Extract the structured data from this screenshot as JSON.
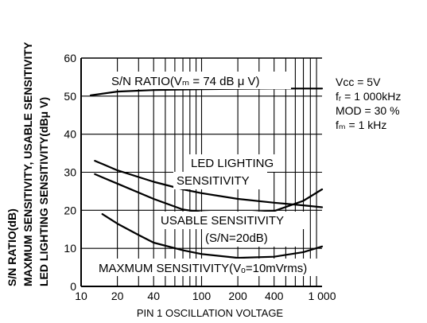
{
  "chart_data": {
    "type": "line",
    "title": "",
    "xlabel": "PIN 1 OSCILLATION VOLTAGE",
    "ylabel_lines": [
      "S/N RATIO(dB)",
      "MAXMUM SENSITIVITY, USABLE SENSITIVITY",
      "LED LIGHTING SENSITIVITY(dBμ V)"
    ],
    "x_scale": "log",
    "xlim": [
      10,
      1000
    ],
    "ylim": [
      0,
      60
    ],
    "x_ticks": [
      10,
      20,
      40,
      100,
      200,
      400,
      1000
    ],
    "x_tick_labels": [
      "10",
      "20",
      "40",
      "100",
      "200",
      "400",
      "1 000"
    ],
    "y_ticks": [
      0,
      10,
      20,
      30,
      40,
      50,
      60
    ],
    "y_tick_labels": [
      "0",
      "10",
      "20",
      "30",
      "40",
      "50",
      "60"
    ],
    "grid": true,
    "series": [
      {
        "name": "S/N RATIO(Vₘ = 74 dB μ V)",
        "x": [
          12,
          20,
          40,
          100,
          200,
          400,
          1000
        ],
        "y": [
          50.2,
          51.2,
          51.6,
          51.8,
          51.9,
          52,
          52
        ]
      },
      {
        "name": "LED LIGHTING SENSITIVITY",
        "x": [
          13,
          20,
          40,
          70,
          100,
          200,
          400,
          700,
          1000
        ],
        "y": [
          33,
          30.5,
          27.5,
          25.5,
          24.5,
          23,
          22,
          21.3,
          20.8
        ]
      },
      {
        "name": "USABLE SENSITIVITY (S/N=20dB)",
        "x": [
          13,
          20,
          40,
          70,
          100,
          200,
          400,
          700,
          1000
        ],
        "y": [
          29.5,
          27,
          23,
          20.2,
          19.5,
          19.2,
          19.8,
          22.5,
          25.5
        ]
      },
      {
        "name": "MAXMUM SENSITIVITY(Vₒ=10mVrms)",
        "x": [
          15,
          20,
          30,
          40,
          70,
          100,
          200,
          400,
          700,
          1000
        ],
        "y": [
          19,
          16.5,
          13.5,
          11.5,
          9.5,
          8.5,
          7.5,
          7.8,
          9,
          10.5
        ]
      }
    ],
    "conditions": [
      "Vᴄᴄ = 5V",
      "fᵣ = 1 000kHz",
      "MOD = 30 %",
      "fₘ = 1 kHz"
    ]
  }
}
